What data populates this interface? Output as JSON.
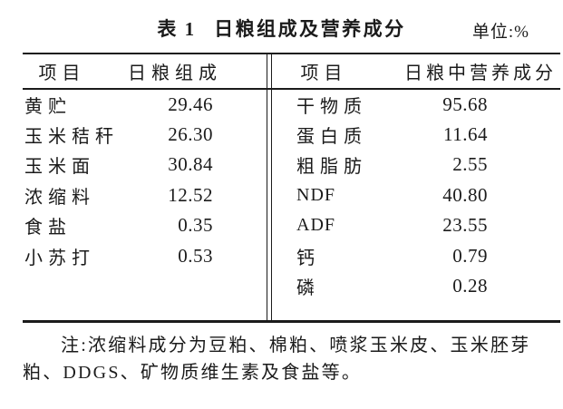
{
  "page": {
    "background": "#ffffff",
    "text_color": "#1b1b1b"
  },
  "header": {
    "table_label": "表 1",
    "title": "日粮组成及营养成分",
    "unit": "单位:%"
  },
  "table": {
    "left": {
      "columns": [
        "项目",
        "日粮组成"
      ],
      "rows": [
        [
          "黄贮",
          "29.46"
        ],
        [
          "玉米秸秆",
          "26.30"
        ],
        [
          "玉米面",
          "30.84"
        ],
        [
          "浓缩料",
          "12.52"
        ],
        [
          "食盐",
          "0.35"
        ],
        [
          "小苏打",
          "0.53"
        ]
      ]
    },
    "right": {
      "columns": [
        "项目",
        "日粮中营养成分"
      ],
      "rows": [
        [
          "干物质",
          "95.68"
        ],
        [
          "蛋白质",
          "11.64"
        ],
        [
          "粗脂肪",
          "2.55"
        ],
        [
          "NDF",
          "40.80"
        ],
        [
          "ADF",
          "23.55"
        ],
        [
          "钙",
          "0.79"
        ],
        [
          "磷",
          "0.28"
        ]
      ]
    }
  },
  "note": {
    "line1": "注:浓缩料成分为豆粕、棉粕、喷浆玉米皮、玉米胚芽",
    "line2": "粕、DDGS、矿物质维生素及食盐等。"
  }
}
